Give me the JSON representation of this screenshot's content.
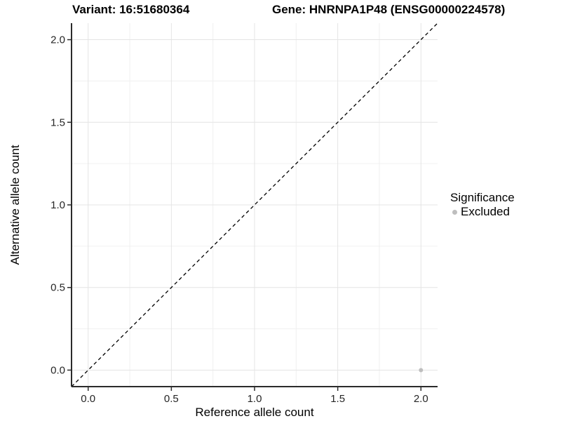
{
  "chart_data": {
    "type": "scatter",
    "title_left": "Variant: 16:51680364",
    "title_right": "Gene: HNRNPA1P48 (ENSG00000224578)",
    "xlabel": "Reference allele count",
    "ylabel": "Alternative allele count",
    "xlim": [
      -0.1,
      2.1
    ],
    "ylim": [
      -0.1,
      2.1
    ],
    "xticks": {
      "values": [
        0,
        0.5,
        1,
        1.5,
        2
      ],
      "labels": [
        "0.0",
        "0.5",
        "1.0",
        "1.5",
        "2.0"
      ]
    },
    "yticks": {
      "values": [
        0,
        0.5,
        1,
        1.5,
        2
      ],
      "labels": [
        "0.0",
        "0.5",
        "1.0",
        "1.5",
        "2.0"
      ]
    },
    "xticks_minor": [
      0.25,
      0.75,
      1.25,
      1.75
    ],
    "yticks_minor": [
      0.25,
      0.75,
      1.25,
      1.75
    ],
    "grid": true,
    "series": [
      {
        "name": "Excluded",
        "color": "#BEBEBE",
        "points": [
          {
            "x": 2.0,
            "y": 0.0
          }
        ]
      }
    ],
    "reference_line": {
      "kind": "identity",
      "style": "dashed",
      "color": "#000000"
    },
    "legend": {
      "title": "Significance",
      "position": "right",
      "entries": [
        {
          "label": "Excluded",
          "color": "#BEBEBE"
        }
      ]
    },
    "colors": {
      "background": "#FFFFFF",
      "grid_major": "#E4E4E4",
      "grid_minor": "#F0F0F0",
      "axis": "#2B2B2B",
      "tick_text": "#262626",
      "point": "#BEBEBE"
    }
  }
}
